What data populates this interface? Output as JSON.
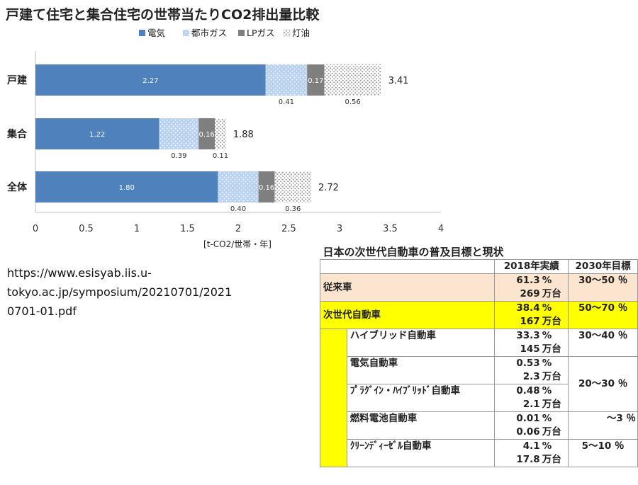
{
  "chart_data": {
    "type": "bar",
    "orientation": "horizontal",
    "stacked": true,
    "title": "戸建て住宅と集合住宅の世帯当たりCO2排出量比較",
    "xlabel": "[t-CO2/世帯・年]",
    "xlim": [
      0,
      4
    ],
    "xticks": [
      "0",
      "0.5",
      "1",
      "1.5",
      "2",
      "2.5",
      "3",
      "3.5",
      "4"
    ],
    "legend_position": "top",
    "categories": [
      "戸建",
      "集合",
      "全体"
    ],
    "series": [
      {
        "name": "電気",
        "values": [
          2.27,
          1.22,
          1.8
        ],
        "labels": [
          "2.27",
          "1.22",
          "1.80"
        ],
        "color": "#4f81bd"
      },
      {
        "name": "都市ガス",
        "values": [
          0.41,
          0.39,
          0.4
        ],
        "labels": [
          "0.41",
          "0.39",
          "0.40"
        ],
        "color": "#b9d2ef"
      },
      {
        "name": "LPガス",
        "values": [
          0.17,
          0.16,
          0.16
        ],
        "labels": [
          "0.17",
          "0.16",
          "0.16"
        ],
        "color": "#7f7f7f"
      },
      {
        "name": "灯油",
        "values": [
          0.56,
          0.11,
          0.36
        ],
        "labels": [
          "0.56",
          "0.11",
          "0.36"
        ],
        "color": "#d0d0d0"
      }
    ],
    "totals": [
      "3.41",
      "1.88",
      "2.72"
    ]
  },
  "source": {
    "lines": [
      "https://www.esisyab.iis.u-",
      "tokyo.ac.jp/symposium/20210701/2021",
      "0701-01.pdf"
    ]
  },
  "table": {
    "title": "日本の次世代自動車の普及目標と現状",
    "col_2018": "2018年実績",
    "col_2030": "2030年目標",
    "pct": "%",
    "unit": "万台",
    "rows": {
      "conv": {
        "label": "従来車",
        "pct": "61.3",
        "count": "269",
        "target": "30～50 ％"
      },
      "next": {
        "label": "次世代自動車",
        "pct": "38.4",
        "count": "167",
        "target": "50～70 ％"
      },
      "hybrid": {
        "label": "ハイブリッド自動車",
        "pct": "33.3",
        "count": "145",
        "target": "30～40 ％"
      },
      "ev": {
        "label": "電気自動車",
        "pct": "0.53",
        "count": "2.3"
      },
      "ev_phev_target": "20～30 ％",
      "phev": {
        "label": "ﾌﾟﾗｸﾞｲﾝ・ﾊｲﾌﾞﾘｯﾄﾞ自動車",
        "pct": "0.48",
        "count": "2.1"
      },
      "fcv": {
        "label": "燃料電池自動車",
        "pct": "0.01",
        "count": "0.06",
        "target": "～3 ％"
      },
      "diesel": {
        "label": "ｸﾘｰﾝﾃﾞｨｰｾﾞﾙ自動車",
        "pct": "4.1",
        "count": "17.8",
        "target": "5～10 ％"
      }
    }
  }
}
